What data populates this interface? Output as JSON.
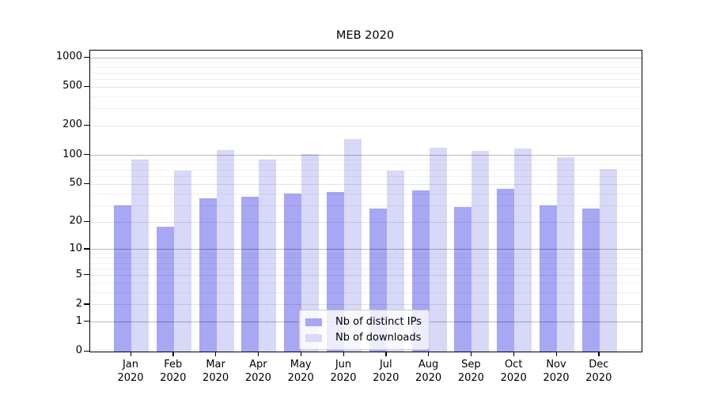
{
  "chart_data": {
    "type": "bar",
    "title": "MEB 2020",
    "categories": [
      "Jan 2020",
      "Feb 2020",
      "Mar 2020",
      "Apr 2020",
      "May 2020",
      "Jun 2020",
      "Jul 2020",
      "Aug 2020",
      "Sep 2020",
      "Oct 2020",
      "Nov 2020",
      "Dec 2020"
    ],
    "x_months": [
      "Jan",
      "Feb",
      "Mar",
      "Apr",
      "May",
      "Jun",
      "Jul",
      "Aug",
      "Sep",
      "Oct",
      "Nov",
      "Dec"
    ],
    "x_year": "2020",
    "series": [
      {
        "name": "Nb of distinct IPs",
        "color": "#a7a7f3",
        "values": [
          30,
          18,
          36,
          37,
          40,
          42,
          28,
          43,
          29,
          45,
          30,
          28
        ]
      },
      {
        "name": "Nb of downloads",
        "color": "#d8d8f8",
        "values": [
          90,
          70,
          113,
          90,
          103,
          147,
          70,
          120,
          112,
          117,
          95,
          72
        ]
      }
    ],
    "yscale": "symlog",
    "yticks": [
      0,
      1,
      2,
      5,
      10,
      20,
      50,
      100,
      200,
      500,
      1000
    ],
    "decade_ticks": [
      1,
      10,
      100,
      1000
    ],
    "minor_ticks": [
      3,
      4,
      6,
      7,
      8,
      9,
      30,
      40,
      60,
      70,
      80,
      90,
      300,
      400,
      600,
      700,
      800,
      900
    ],
    "ylim": [
      0,
      1180
    ],
    "grid": true,
    "legend_position": "lower-center-inside",
    "colors": {
      "bar_dark": "#a7a7f3",
      "bar_light": "#d8d8f8",
      "spine": "#000000",
      "grid_minor": "#f2f2f2",
      "grid_major": "#e6e6e6",
      "grid_decade": "#bababa"
    }
  }
}
